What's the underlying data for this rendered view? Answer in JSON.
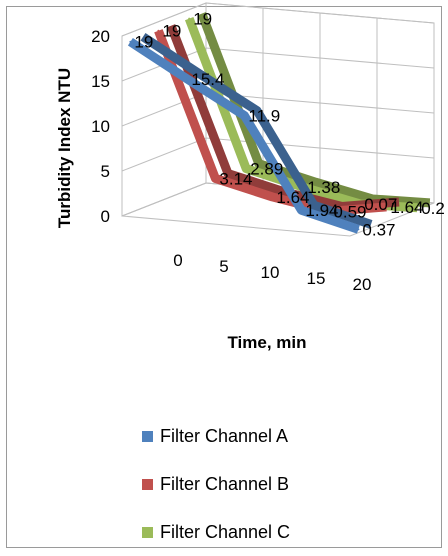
{
  "chart_data": {
    "type": "line",
    "style": "3d",
    "title": "",
    "xlabel": "Time, min",
    "ylabel": "Turbidity Index NTU",
    "x": [
      0,
      5,
      10,
      15,
      20
    ],
    "x_ticks": [
      "0",
      "5",
      "10",
      "15",
      "20"
    ],
    "y_ticks": [
      "0",
      "5",
      "10",
      "15",
      "20"
    ],
    "ylim": [
      0,
      20
    ],
    "grid": true,
    "legend_position": "bottom",
    "series": [
      {
        "name": "Filter Channel A",
        "color": "#4f81bd",
        "values": [
          19,
          15.4,
          11.9,
          1.94,
          0.37
        ],
        "labels": [
          "19",
          "15.4",
          "11.9",
          "1.94",
          "0.37"
        ]
      },
      {
        "name": "Filter Channel B",
        "color": "#c0504d",
        "values": [
          19,
          3.14,
          1.64,
          0.59,
          1.64
        ],
        "labels": [
          "19",
          "3.14",
          "1.64",
          "0.59",
          "1.64"
        ]
      },
      {
        "name": "Filter Channel C",
        "color": "#9bbb59",
        "values": [
          19,
          2.89,
          1.38,
          0.07,
          0.2
        ],
        "labels": [
          "19",
          "2.89",
          "1.38",
          "0.07",
          "0.2"
        ]
      }
    ]
  }
}
